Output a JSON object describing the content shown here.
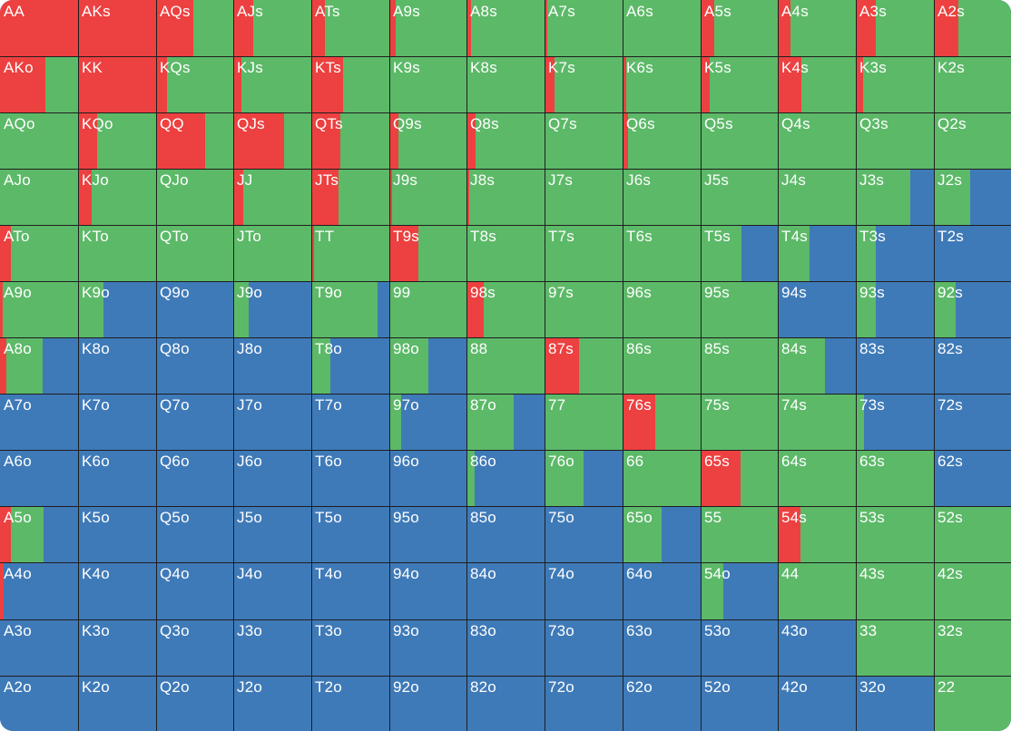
{
  "colors": {
    "raise": "#ed4040",
    "call": "#5cb968",
    "fold": "#3f7ab8",
    "label": "#ffffff",
    "grid_line": "#1e1e1e"
  },
  "legend_order": [
    "raise",
    "call",
    "fold"
  ],
  "grid": [
    [
      {
        "label": "AA",
        "raise": 1.0,
        "call": 0.0
      },
      {
        "label": "AKs",
        "raise": 1.0,
        "call": 0.0
      },
      {
        "label": "AQs",
        "raise": 0.48,
        "call": 0.52
      },
      {
        "label": "AJs",
        "raise": 0.25,
        "call": 0.75
      },
      {
        "label": "ATs",
        "raise": 0.18,
        "call": 0.82
      },
      {
        "label": "A9s",
        "raise": 0.08,
        "call": 0.92
      },
      {
        "label": "A8s",
        "raise": 0.06,
        "call": 0.94
      },
      {
        "label": "A7s",
        "raise": 0.03,
        "call": 0.97
      },
      {
        "label": "A6s",
        "raise": 0.0,
        "call": 1.0
      },
      {
        "label": "A5s",
        "raise": 0.18,
        "call": 0.82
      },
      {
        "label": "A4s",
        "raise": 0.16,
        "call": 0.84
      },
      {
        "label": "A3s",
        "raise": 0.25,
        "call": 0.75
      },
      {
        "label": "A2s",
        "raise": 0.32,
        "call": 0.68
      }
    ],
    [
      {
        "label": "AKo",
        "raise": 0.58,
        "call": 0.42
      },
      {
        "label": "KK",
        "raise": 1.0,
        "call": 0.0
      },
      {
        "label": "KQs",
        "raise": 0.14,
        "call": 0.86
      },
      {
        "label": "KJs",
        "raise": 0.1,
        "call": 0.9
      },
      {
        "label": "KTs",
        "raise": 0.41,
        "call": 0.59
      },
      {
        "label": "K9s",
        "raise": 0.0,
        "call": 1.0
      },
      {
        "label": "K8s",
        "raise": 0.0,
        "call": 1.0
      },
      {
        "label": "K7s",
        "raise": 0.13,
        "call": 0.87
      },
      {
        "label": "K6s",
        "raise": 0.05,
        "call": 0.95
      },
      {
        "label": "K5s",
        "raise": 0.12,
        "call": 0.88
      },
      {
        "label": "K4s",
        "raise": 0.3,
        "call": 0.7
      },
      {
        "label": "K3s",
        "raise": 0.09,
        "call": 0.91
      },
      {
        "label": "K2s",
        "raise": 0.0,
        "call": 1.0
      }
    ],
    [
      {
        "label": "AQo",
        "raise": 0.0,
        "call": 1.0
      },
      {
        "label": "KQo",
        "raise": 0.24,
        "call": 0.76
      },
      {
        "label": "QQ",
        "raise": 0.63,
        "call": 0.37
      },
      {
        "label": "QJs",
        "raise": 0.65,
        "call": 0.35
      },
      {
        "label": "QTs",
        "raise": 0.37,
        "call": 0.63
      },
      {
        "label": "Q9s",
        "raise": 0.12,
        "call": 0.88
      },
      {
        "label": "Q8s",
        "raise": 0.12,
        "call": 0.88
      },
      {
        "label": "Q7s",
        "raise": 0.0,
        "call": 1.0
      },
      {
        "label": "Q6s",
        "raise": 0.07,
        "call": 0.93
      },
      {
        "label": "Q5s",
        "raise": 0.0,
        "call": 1.0
      },
      {
        "label": "Q4s",
        "raise": 0.0,
        "call": 1.0
      },
      {
        "label": "Q3s",
        "raise": 0.0,
        "call": 1.0
      },
      {
        "label": "Q2s",
        "raise": 0.0,
        "call": 1.0
      }
    ],
    [
      {
        "label": "AJo",
        "raise": 0.0,
        "call": 1.0
      },
      {
        "label": "KJo",
        "raise": 0.17,
        "call": 0.83
      },
      {
        "label": "QJo",
        "raise": 0.0,
        "call": 1.0
      },
      {
        "label": "JJ",
        "raise": 0.13,
        "call": 0.87
      },
      {
        "label": "JTs",
        "raise": 0.35,
        "call": 0.65
      },
      {
        "label": "J9s",
        "raise": 0.03,
        "call": 0.97
      },
      {
        "label": "J8s",
        "raise": 0.03,
        "call": 0.97
      },
      {
        "label": "J7s",
        "raise": 0.0,
        "call": 1.0
      },
      {
        "label": "J6s",
        "raise": 0.0,
        "call": 1.0
      },
      {
        "label": "J5s",
        "raise": 0.0,
        "call": 1.0
      },
      {
        "label": "J4s",
        "raise": 0.0,
        "call": 1.0
      },
      {
        "label": "J3s",
        "raise": 0.0,
        "call": 0.7
      },
      {
        "label": "J2s",
        "raise": 0.0,
        "call": 0.47
      }
    ],
    [
      {
        "label": "ATo",
        "raise": 0.14,
        "call": 0.86
      },
      {
        "label": "KTo",
        "raise": 0.0,
        "call": 1.0
      },
      {
        "label": "QTo",
        "raise": 0.0,
        "call": 1.0
      },
      {
        "label": "JTo",
        "raise": 0.0,
        "call": 1.0
      },
      {
        "label": "TT",
        "raise": 0.03,
        "call": 0.97
      },
      {
        "label": "T9s",
        "raise": 0.38,
        "call": 0.62
      },
      {
        "label": "T8s",
        "raise": 0.0,
        "call": 1.0
      },
      {
        "label": "T7s",
        "raise": 0.0,
        "call": 1.0
      },
      {
        "label": "T6s",
        "raise": 0.0,
        "call": 1.0
      },
      {
        "label": "T5s",
        "raise": 0.0,
        "call": 0.53
      },
      {
        "label": "T4s",
        "raise": 0.0,
        "call": 0.41
      },
      {
        "label": "T3s",
        "raise": 0.0,
        "call": 0.26
      },
      {
        "label": "T2s",
        "raise": 0.0,
        "call": 0.0
      }
    ],
    [
      {
        "label": "A9o",
        "raise": 0.03,
        "call": 0.97
      },
      {
        "label": "K9o",
        "raise": 0.0,
        "call": 0.32
      },
      {
        "label": "Q9o",
        "raise": 0.0,
        "call": 0.0
      },
      {
        "label": "J9o",
        "raise": 0.0,
        "call": 0.2
      },
      {
        "label": "T9o",
        "raise": 0.0,
        "call": 0.85
      },
      {
        "label": "99",
        "raise": 0.0,
        "call": 1.0
      },
      {
        "label": "98s",
        "raise": 0.22,
        "call": 0.78
      },
      {
        "label": "97s",
        "raise": 0.0,
        "call": 1.0
      },
      {
        "label": "96s",
        "raise": 0.0,
        "call": 1.0
      },
      {
        "label": "95s",
        "raise": 0.0,
        "call": 1.0
      },
      {
        "label": "94s",
        "raise": 0.0,
        "call": 0.0
      },
      {
        "label": "93s",
        "raise": 0.0,
        "call": 0.26
      },
      {
        "label": "92s",
        "raise": 0.0,
        "call": 0.28
      }
    ],
    [
      {
        "label": "A8o",
        "raise": 0.08,
        "call": 0.47
      },
      {
        "label": "K8o",
        "raise": 0.0,
        "call": 0.0
      },
      {
        "label": "Q8o",
        "raise": 0.0,
        "call": 0.0
      },
      {
        "label": "J8o",
        "raise": 0.0,
        "call": 0.0
      },
      {
        "label": "T8o",
        "raise": 0.0,
        "call": 0.24
      },
      {
        "label": "98o",
        "raise": 0.0,
        "call": 0.51
      },
      {
        "label": "88",
        "raise": 0.0,
        "call": 1.0
      },
      {
        "label": "87s",
        "raise": 0.44,
        "call": 0.56
      },
      {
        "label": "86s",
        "raise": 0.0,
        "call": 1.0
      },
      {
        "label": "85s",
        "raise": 0.0,
        "call": 1.0
      },
      {
        "label": "84s",
        "raise": 0.0,
        "call": 0.6
      },
      {
        "label": "83s",
        "raise": 0.0,
        "call": 0.0
      },
      {
        "label": "82s",
        "raise": 0.0,
        "call": 0.0
      }
    ],
    [
      {
        "label": "A7o",
        "raise": 0.0,
        "call": 0.0
      },
      {
        "label": "K7o",
        "raise": 0.0,
        "call": 0.0
      },
      {
        "label": "Q7o",
        "raise": 0.0,
        "call": 0.0
      },
      {
        "label": "J7o",
        "raise": 0.0,
        "call": 0.0
      },
      {
        "label": "T7o",
        "raise": 0.0,
        "call": 0.0
      },
      {
        "label": "97o",
        "raise": 0.0,
        "call": 0.15
      },
      {
        "label": "87o",
        "raise": 0.0,
        "call": 0.6
      },
      {
        "label": "77",
        "raise": 0.0,
        "call": 1.0
      },
      {
        "label": "76s",
        "raise": 0.42,
        "call": 0.58
      },
      {
        "label": "75s",
        "raise": 0.0,
        "call": 1.0
      },
      {
        "label": "74s",
        "raise": 0.0,
        "call": 1.0
      },
      {
        "label": "73s",
        "raise": 0.0,
        "call": 0.1
      },
      {
        "label": "72s",
        "raise": 0.0,
        "call": 0.0
      }
    ],
    [
      {
        "label": "A6o",
        "raise": 0.0,
        "call": 0.0
      },
      {
        "label": "K6o",
        "raise": 0.0,
        "call": 0.0
      },
      {
        "label": "Q6o",
        "raise": 0.0,
        "call": 0.0
      },
      {
        "label": "J6o",
        "raise": 0.0,
        "call": 0.0
      },
      {
        "label": "T6o",
        "raise": 0.0,
        "call": 0.0
      },
      {
        "label": "96o",
        "raise": 0.0,
        "call": 0.0
      },
      {
        "label": "86o",
        "raise": 0.0,
        "call": 0.11
      },
      {
        "label": "76o",
        "raise": 0.0,
        "call": 0.5
      },
      {
        "label": "66",
        "raise": 0.0,
        "call": 1.0
      },
      {
        "label": "65s",
        "raise": 0.52,
        "call": 0.48
      },
      {
        "label": "64s",
        "raise": 0.0,
        "call": 1.0
      },
      {
        "label": "63s",
        "raise": 0.0,
        "call": 1.0
      },
      {
        "label": "62s",
        "raise": 0.0,
        "call": 0.0
      }
    ],
    [
      {
        "label": "A5o",
        "raise": 0.14,
        "call": 0.42
      },
      {
        "label": "K5o",
        "raise": 0.0,
        "call": 0.0
      },
      {
        "label": "Q5o",
        "raise": 0.0,
        "call": 0.0
      },
      {
        "label": "J5o",
        "raise": 0.0,
        "call": 0.0
      },
      {
        "label": "T5o",
        "raise": 0.0,
        "call": 0.0
      },
      {
        "label": "95o",
        "raise": 0.0,
        "call": 0.0
      },
      {
        "label": "85o",
        "raise": 0.0,
        "call": 0.0
      },
      {
        "label": "75o",
        "raise": 0.0,
        "call": 0.0
      },
      {
        "label": "65o",
        "raise": 0.0,
        "call": 0.5
      },
      {
        "label": "55",
        "raise": 0.0,
        "call": 1.0
      },
      {
        "label": "54s",
        "raise": 0.29,
        "call": 0.71
      },
      {
        "label": "53s",
        "raise": 0.0,
        "call": 1.0
      },
      {
        "label": "52s",
        "raise": 0.0,
        "call": 1.0
      }
    ],
    [
      {
        "label": "A4o",
        "raise": 0.05,
        "call": 0.0
      },
      {
        "label": "K4o",
        "raise": 0.0,
        "call": 0.0
      },
      {
        "label": "Q4o",
        "raise": 0.0,
        "call": 0.0
      },
      {
        "label": "J4o",
        "raise": 0.0,
        "call": 0.0
      },
      {
        "label": "T4o",
        "raise": 0.0,
        "call": 0.0
      },
      {
        "label": "94o",
        "raise": 0.0,
        "call": 0.0
      },
      {
        "label": "84o",
        "raise": 0.0,
        "call": 0.0
      },
      {
        "label": "74o",
        "raise": 0.0,
        "call": 0.0
      },
      {
        "label": "64o",
        "raise": 0.0,
        "call": 0.0
      },
      {
        "label": "54o",
        "raise": 0.0,
        "call": 0.29
      },
      {
        "label": "44",
        "raise": 0.0,
        "call": 1.0
      },
      {
        "label": "43s",
        "raise": 0.0,
        "call": 1.0
      },
      {
        "label": "42s",
        "raise": 0.0,
        "call": 1.0
      }
    ],
    [
      {
        "label": "A3o",
        "raise": 0.0,
        "call": 0.0
      },
      {
        "label": "K3o",
        "raise": 0.0,
        "call": 0.0
      },
      {
        "label": "Q3o",
        "raise": 0.0,
        "call": 0.0
      },
      {
        "label": "J3o",
        "raise": 0.0,
        "call": 0.0
      },
      {
        "label": "T3o",
        "raise": 0.0,
        "call": 0.0
      },
      {
        "label": "93o",
        "raise": 0.0,
        "call": 0.0
      },
      {
        "label": "83o",
        "raise": 0.0,
        "call": 0.0
      },
      {
        "label": "73o",
        "raise": 0.0,
        "call": 0.0
      },
      {
        "label": "63o",
        "raise": 0.0,
        "call": 0.0
      },
      {
        "label": "53o",
        "raise": 0.0,
        "call": 0.0
      },
      {
        "label": "43o",
        "raise": 0.0,
        "call": 0.0
      },
      {
        "label": "33",
        "raise": 0.0,
        "call": 1.0
      },
      {
        "label": "32s",
        "raise": 0.0,
        "call": 1.0
      }
    ],
    [
      {
        "label": "A2o",
        "raise": 0.0,
        "call": 0.0
      },
      {
        "label": "K2o",
        "raise": 0.0,
        "call": 0.0
      },
      {
        "label": "Q2o",
        "raise": 0.0,
        "call": 0.0
      },
      {
        "label": "J2o",
        "raise": 0.0,
        "call": 0.0
      },
      {
        "label": "T2o",
        "raise": 0.0,
        "call": 0.0
      },
      {
        "label": "92o",
        "raise": 0.0,
        "call": 0.0
      },
      {
        "label": "82o",
        "raise": 0.0,
        "call": 0.0
      },
      {
        "label": "72o",
        "raise": 0.0,
        "call": 0.0
      },
      {
        "label": "62o",
        "raise": 0.0,
        "call": 0.0
      },
      {
        "label": "52o",
        "raise": 0.0,
        "call": 0.0
      },
      {
        "label": "42o",
        "raise": 0.0,
        "call": 0.0
      },
      {
        "label": "32o",
        "raise": 0.0,
        "call": 0.0
      },
      {
        "label": "22",
        "raise": 0.0,
        "call": 1.0
      }
    ]
  ]
}
